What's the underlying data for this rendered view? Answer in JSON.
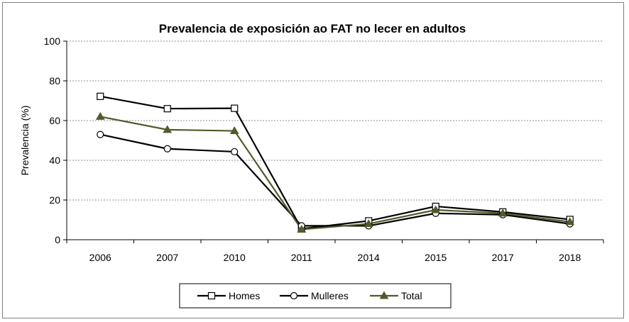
{
  "chart_data": {
    "type": "line",
    "title": "Prevalencia de exposición ao FAT no lecer en adultos",
    "xlabel": "",
    "ylabel": "Prevalencia (%)",
    "ylim": [
      0,
      100
    ],
    "yticks": [
      0,
      20,
      40,
      60,
      80,
      100
    ],
    "grid": true,
    "legend_position": "bottom",
    "categories": [
      "2006",
      "2007",
      "2010",
      "2011",
      "2014",
      "2015",
      "2017",
      "2018"
    ],
    "series": [
      {
        "name": "Homes",
        "marker": "square",
        "color": "#000000",
        "values": [
          72.2,
          66.0,
          66.2,
          5.5,
          9.5,
          16.8,
          14.0,
          10.2
        ]
      },
      {
        "name": "Mulleres",
        "marker": "circle",
        "color": "#000000",
        "values": [
          53.0,
          45.8,
          44.3,
          7.0,
          7.0,
          13.3,
          12.6,
          8.0
        ]
      },
      {
        "name": "Total",
        "marker": "triangle",
        "color": "#4f5b2a",
        "values": [
          62.0,
          55.4,
          54.8,
          5.2,
          8.0,
          15.0,
          13.3,
          9.0
        ]
      }
    ]
  }
}
